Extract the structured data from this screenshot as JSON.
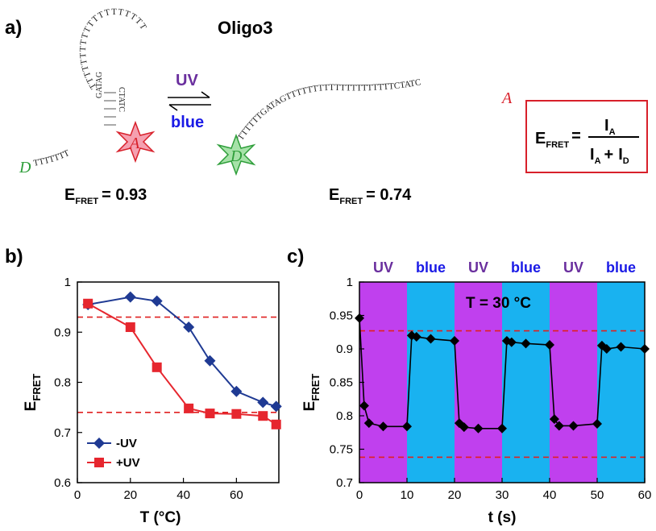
{
  "colors": {
    "uv_purple": "#6a2f9e",
    "blue_text": "#1a1ae6",
    "donor_green": "#2e9e3a",
    "acceptor_red": "#d8202a",
    "band_uv": "#c040ee",
    "band_blue": "#19b2f0",
    "series_minus_uv": "#1f3a93",
    "series_plus_uv": "#e6262e",
    "reference_line": "#e02020"
  },
  "panel_a": {
    "label": "a)",
    "title": "Oligo3",
    "hairpin_stem_top": "GATAG",
    "hairpin_stem_bottom": "CTATC",
    "hairpin_loop": "TTTTTTTTTTTTTTTTTTTT",
    "hairpin_tail": "TTTTTTT",
    "linear_sequence": "TTTTTTGATAGTTTTTTTTTTTTTTTTTTTTCTATC",
    "donor": "D",
    "acceptor": "A",
    "uv_label": "UV",
    "blue_label": "blue",
    "efret_left_main": "E",
    "efret_left_sub": "FRET",
    "efret_left_value": "= 0.93",
    "efret_right_main": "E",
    "efret_right_sub": "FRET",
    "efret_right_value": "= 0.74",
    "formula": {
      "lhs_main": "E",
      "lhs_sub": "FRET",
      "equals": "=",
      "num_main": "I",
      "num_sub": "A",
      "den_a_main": "I",
      "den_a_sub": "A",
      "plus": "+",
      "den_d_main": "I",
      "den_d_sub": "D"
    }
  },
  "chart_data": [
    {
      "panel_label": "b)",
      "type": "line",
      "xlabel": "T (°C)",
      "ylabel_main": "E",
      "ylabel_sub": "FRET",
      "xlim": [
        0,
        76
      ],
      "ylim": [
        0.6,
        1.0
      ],
      "xticks": [
        0,
        20,
        40,
        60
      ],
      "yticks": [
        0.6,
        0.7,
        0.8,
        0.9,
        1.0
      ],
      "ytick_labels": [
        "0.6",
        "0.7",
        "0.8",
        "0.9",
        "1"
      ],
      "legend_position": "bottom-left",
      "reference_lines": [
        0.93,
        0.74
      ],
      "series": [
        {
          "name": "-UV",
          "marker": "diamond",
          "x": [
            4,
            20,
            30,
            42,
            50,
            60,
            70,
            75
          ],
          "y": [
            0.955,
            0.97,
            0.962,
            0.91,
            0.843,
            0.782,
            0.76,
            0.752
          ]
        },
        {
          "name": "+UV",
          "marker": "square",
          "x": [
            4,
            20,
            30,
            42,
            50,
            60,
            70,
            75
          ],
          "y": [
            0.957,
            0.91,
            0.83,
            0.748,
            0.738,
            0.737,
            0.733,
            0.716
          ]
        }
      ]
    },
    {
      "panel_label": "c)",
      "type": "line",
      "xlabel": "t (s)",
      "ylabel_main": "E",
      "ylabel_sub": "FRET",
      "xlim": [
        0,
        60
      ],
      "ylim": [
        0.7,
        1.0
      ],
      "xticks": [
        0,
        10,
        20,
        30,
        40,
        50,
        60
      ],
      "yticks": [
        0.7,
        0.75,
        0.8,
        0.85,
        0.9,
        0.95,
        1.0
      ],
      "ytick_labels": [
        "0.7",
        "0.75",
        "0.8",
        "0.85",
        "0.9",
        "0.95",
        "1"
      ],
      "annotation": "T = 30 °C",
      "reference_lines": [
        0.927,
        0.738
      ],
      "bands": [
        {
          "label": "UV",
          "from": 0,
          "to": 10,
          "kind": "uv"
        },
        {
          "label": "blue",
          "from": 10,
          "to": 20,
          "kind": "blue"
        },
        {
          "label": "UV",
          "from": 20,
          "to": 30,
          "kind": "uv"
        },
        {
          "label": "blue",
          "from": 30,
          "to": 40,
          "kind": "blue"
        },
        {
          "label": "UV",
          "from": 40,
          "to": 50,
          "kind": "uv"
        },
        {
          "label": "blue",
          "from": 50,
          "to": 60,
          "kind": "blue"
        }
      ],
      "series": [
        {
          "marker": "diamond",
          "x": [
            0,
            1,
            2,
            5,
            10,
            11,
            12,
            15,
            20,
            21,
            22,
            25,
            30,
            31,
            32,
            35,
            40,
            41,
            42,
            45,
            50,
            51,
            52,
            55,
            60
          ],
          "y": [
            0.946,
            0.815,
            0.789,
            0.784,
            0.784,
            0.92,
            0.918,
            0.915,
            0.912,
            0.789,
            0.783,
            0.781,
            0.781,
            0.912,
            0.91,
            0.908,
            0.906,
            0.795,
            0.785,
            0.785,
            0.788,
            0.905,
            0.9,
            0.903,
            0.9
          ]
        }
      ]
    }
  ]
}
